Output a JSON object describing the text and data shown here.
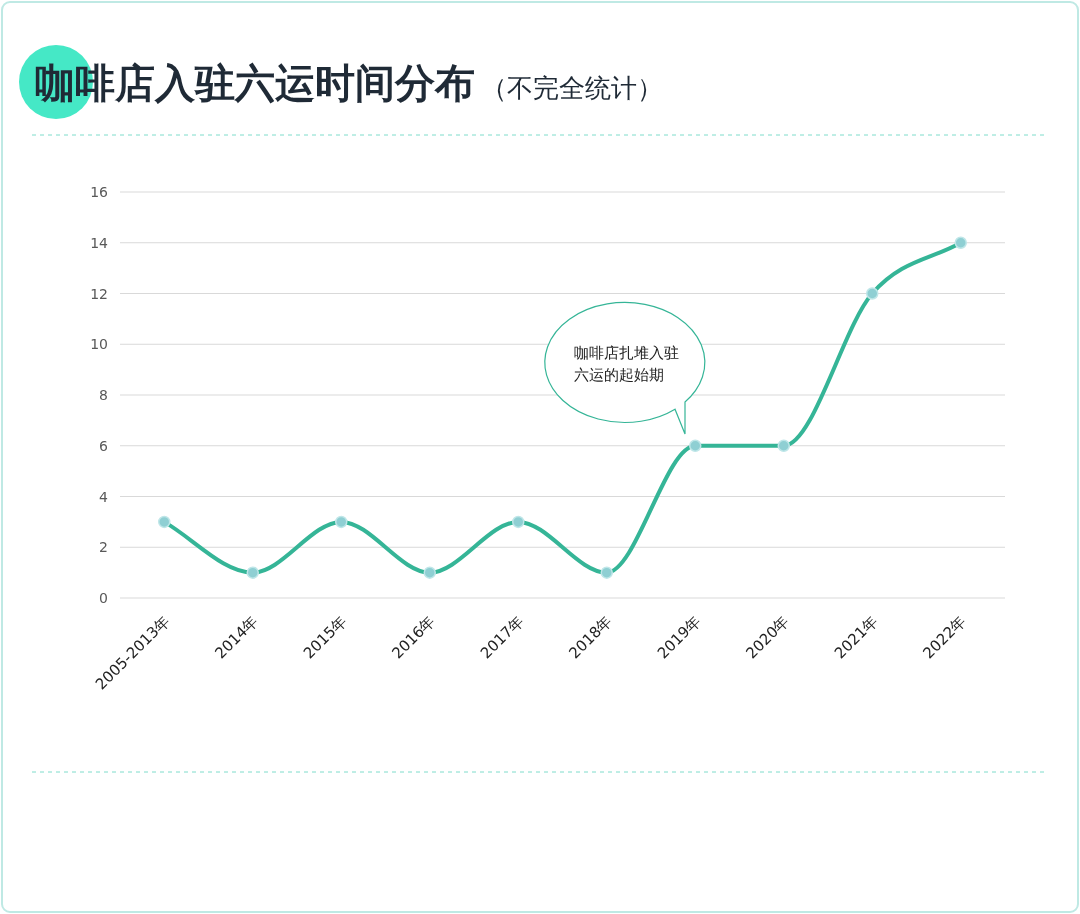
{
  "chart_data": {
    "type": "line",
    "title": "咖啡店入驻六运时间分布",
    "subtitle": "（不完全统计）",
    "categories": [
      "2005-2013年",
      "2014年",
      "2015年",
      "2016年",
      "2017年",
      "2018年",
      "2019年",
      "2020年",
      "2021年",
      "2022年"
    ],
    "values": [
      3,
      1,
      3,
      1,
      3,
      1,
      6,
      6,
      12,
      14
    ],
    "color": "#35b597",
    "ylim": [
      0,
      16
    ],
    "yticks": [
      0,
      2,
      4,
      6,
      8,
      10,
      12,
      14,
      16
    ],
    "grid": "y",
    "marker": "circle",
    "line_style": "solid",
    "annotations": [
      "咖啡店扎堆入驻六运的起始期"
    ]
  }
}
